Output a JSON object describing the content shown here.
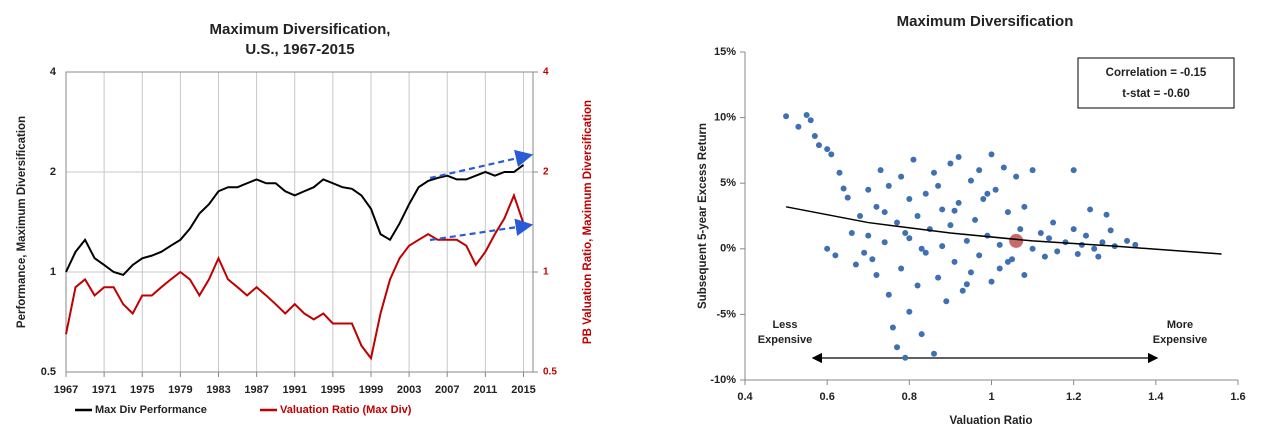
{
  "chart_data": [
    {
      "type": "line",
      "title": [
        "Maximum Diversification,",
        "U.S., 1967-2015"
      ],
      "y_label": "Performance, Maximum Diversification",
      "y2_label": "PB Valuation Ratio, Maximum Diversification",
      "y_scale": "log",
      "y2_scale": "log",
      "grid": true,
      "legend": "bottom",
      "x": [
        1967,
        1968,
        1969,
        1970,
        1971,
        1972,
        1973,
        1974,
        1975,
        1976,
        1977,
        1978,
        1979,
        1980,
        1981,
        1982,
        1983,
        1984,
        1985,
        1986,
        1987,
        1988,
        1989,
        1990,
        1991,
        1992,
        1993,
        1994,
        1995,
        1996,
        1997,
        1998,
        1999,
        2000,
        2001,
        2002,
        2003,
        2004,
        2005,
        2006,
        2007,
        2008,
        2009,
        2010,
        2011,
        2012,
        2013,
        2014,
        2015
      ],
      "xlim": [
        1967,
        2016
      ],
      "xticks": [
        1967,
        1971,
        1975,
        1979,
        1983,
        1987,
        1991,
        1995,
        1999,
        2003,
        2007,
        2011,
        2015
      ],
      "ylim": [
        0.5,
        4
      ],
      "yticks": [
        0.5,
        1,
        2,
        4
      ],
      "y2lim": [
        0.5,
        4
      ],
      "y2ticks": [
        0.5,
        1,
        2,
        4
      ],
      "y2_color": "#c00000",
      "series": [
        {
          "name": "Max Div Performance",
          "color": "#000000",
          "values": [
            1.0,
            1.15,
            1.25,
            1.1,
            1.05,
            1.0,
            0.98,
            1.05,
            1.1,
            1.12,
            1.15,
            1.2,
            1.25,
            1.35,
            1.5,
            1.6,
            1.75,
            1.8,
            1.8,
            1.85,
            1.9,
            1.85,
            1.85,
            1.75,
            1.7,
            1.75,
            1.8,
            1.9,
            1.85,
            1.8,
            1.78,
            1.7,
            1.55,
            1.3,
            1.25,
            1.4,
            1.6,
            1.8,
            1.88,
            1.92,
            1.95,
            1.9,
            1.9,
            1.95,
            2.0,
            1.95,
            2.0,
            2.0,
            2.1
          ]
        },
        {
          "name": "Valuation Ratio (Max Div)",
          "color": "#c00000",
          "axis": "y2",
          "values": [
            0.65,
            0.9,
            0.95,
            0.85,
            0.9,
            0.9,
            0.8,
            0.75,
            0.85,
            0.85,
            0.9,
            0.95,
            1.0,
            0.95,
            0.85,
            0.95,
            1.1,
            0.95,
            0.9,
            0.85,
            0.9,
            0.85,
            0.8,
            0.75,
            0.8,
            0.75,
            0.72,
            0.75,
            0.7,
            0.7,
            0.7,
            0.6,
            0.55,
            0.75,
            0.95,
            1.1,
            1.2,
            1.25,
            1.3,
            1.25,
            1.25,
            1.25,
            1.2,
            1.05,
            1.15,
            1.3,
            1.45,
            1.7,
            1.4
          ]
        }
      ]
    },
    {
      "type": "scatter",
      "title": "Maximum Diversification",
      "x_label": "Valuation Ratio",
      "y_label": "Subsequent 5-year Excess Return",
      "xlim": [
        0.4,
        1.6
      ],
      "xticks": [
        0.4,
        0.6,
        0.8,
        1,
        1.2,
        1.4,
        1.6
      ],
      "ylim": [
        -10,
        15
      ],
      "yticks": [
        {
          "value": -10,
          "label": "-10%"
        },
        {
          "value": -5,
          "label": "-5%"
        },
        {
          "value": 0,
          "label": "0%"
        },
        {
          "value": 5,
          "label": "5%"
        },
        {
          "value": 10,
          "label": "10%"
        },
        {
          "value": 15,
          "label": "15%"
        }
      ],
      "grid": false,
      "series": [
        {
          "color": "#3e70b3",
          "x": [
            0.5,
            0.53,
            0.55,
            0.56,
            0.57,
            0.58,
            0.6,
            0.61,
            0.63,
            0.64,
            0.65,
            0.6,
            0.62,
            0.66,
            0.67,
            0.68,
            0.7,
            0.7,
            0.71,
            0.72,
            0.72,
            0.73,
            0.74,
            0.75,
            0.75,
            0.76,
            0.77,
            0.77,
            0.78,
            0.78,
            0.79,
            0.8,
            0.8,
            0.8,
            0.81,
            0.82,
            0.82,
            0.83,
            0.84,
            0.84,
            0.85,
            0.86,
            0.86,
            0.87,
            0.88,
            0.88,
            0.89,
            0.9,
            0.9,
            0.91,
            0.92,
            0.92,
            0.93,
            0.94,
            0.95,
            0.95,
            0.96,
            0.97,
            0.97,
            0.98,
            0.99,
            1.0,
            1.0,
            1.01,
            1.02,
            1.02,
            1.03,
            1.04,
            1.05,
            1.06,
            1.07,
            1.08,
            1.08,
            1.1,
            1.1,
            1.12,
            1.13,
            1.14,
            1.15,
            1.16,
            1.18,
            1.2,
            1.2,
            1.21,
            1.22,
            1.23,
            1.24,
            1.25,
            1.26,
            1.27,
            1.28,
            1.29,
            1.3,
            1.33,
            1.35,
            0.69,
            0.74,
            0.79,
            0.83,
            0.87,
            0.91,
            0.94,
            0.99,
            1.04
          ],
          "values": [
            10.1,
            9.3,
            10.2,
            9.8,
            8.6,
            7.9,
            7.6,
            7.2,
            5.8,
            4.6,
            3.9,
            0.0,
            -0.5,
            1.2,
            -1.2,
            2.5,
            4.5,
            1.0,
            -0.8,
            3.2,
            -2.0,
            6.0,
            0.5,
            -3.5,
            4.8,
            -6.0,
            2.0,
            -7.5,
            5.5,
            -1.5,
            -8.3,
            3.8,
            -4.8,
            0.8,
            6.8,
            -2.8,
            2.5,
            -6.5,
            4.2,
            -0.3,
            1.5,
            -8.0,
            5.8,
            -2.2,
            3.0,
            0.2,
            -4.0,
            6.5,
            1.8,
            -1.0,
            7.0,
            3.5,
            -3.2,
            0.6,
            5.2,
            -1.8,
            2.2,
            6.0,
            -0.5,
            3.8,
            1.0,
            -2.5,
            7.2,
            4.5,
            0.3,
            -1.5,
            6.2,
            2.8,
            -0.8,
            5.5,
            1.5,
            -2.0,
            3.2,
            0.0,
            6.0,
            1.2,
            -0.6,
            0.8,
            2.0,
            -0.2,
            0.5,
            6.0,
            1.5,
            -0.4,
            0.3,
            1.0,
            3.0,
            0.0,
            -0.6,
            0.5,
            2.6,
            1.4,
            0.2,
            0.6,
            0.3,
            -0.3,
            2.8,
            1.2,
            0.0,
            4.8,
            2.9,
            -2.7,
            4.2,
            -1.0
          ]
        },
        {
          "color": "#c0504d",
          "x": [
            1.06
          ],
          "values": [
            0.6
          ]
        }
      ],
      "trend": {
        "color": "#000000",
        "x": [
          0.5,
          0.7,
          0.9,
          1.1,
          1.3,
          1.56
        ],
        "values": [
          3.2,
          2.0,
          1.2,
          0.6,
          0.2,
          -0.4
        ]
      },
      "stats": [
        "Correlation =  -0.15",
        "t-stat = -0.60"
      ],
      "left_note": [
        "Less",
        "Expensive"
      ],
      "right_note": [
        "More",
        "Expensive"
      ]
    }
  ]
}
